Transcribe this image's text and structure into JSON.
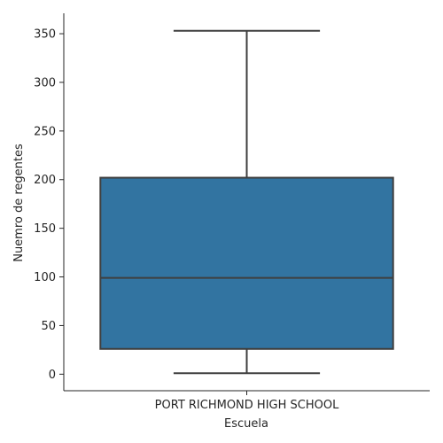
{
  "chart_data": {
    "type": "box",
    "xlabel": "Escuela",
    "ylabel": "Nuemro de regentes",
    "categories": [
      "PORT RICHMOND HIGH SCHOOL"
    ],
    "boxes": [
      {
        "category": "PORT RICHMOND HIGH SCHOOL",
        "whisker_low": 1,
        "q1": 26,
        "median": 99,
        "q3": 202,
        "whisker_high": 353
      }
    ],
    "yticks": [
      0,
      50,
      100,
      150,
      200,
      250,
      300,
      350
    ],
    "ylim": [
      -17,
      371
    ],
    "grid": false,
    "colors": {
      "box_fill": "#3274a1",
      "lines": "#3f3f3f",
      "axis": "#262626"
    }
  }
}
